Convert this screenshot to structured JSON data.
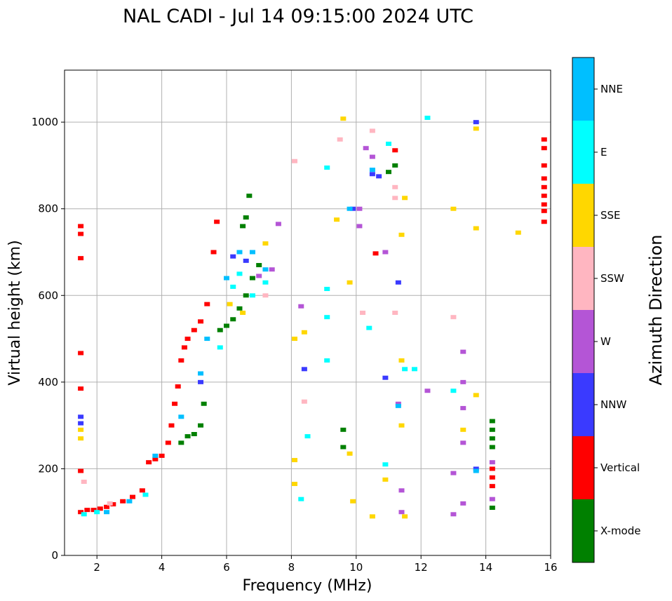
{
  "chart_data": {
    "type": "scatter",
    "title": "NAL CADI - Jul 14 09:15:00 2024 UTC",
    "xlabel": "Frequency (MHz)",
    "ylabel": "Virtual height (km)",
    "xlim": [
      1,
      16
    ],
    "ylim": [
      0,
      1120
    ],
    "xticks": [
      "2",
      "4",
      "6",
      "8",
      "10",
      "12",
      "14",
      "16"
    ],
    "yticks": [
      "0",
      "200",
      "400",
      "600",
      "800",
      "1000"
    ],
    "grid": true,
    "colorbar": {
      "label": "Azimuth Direction",
      "categories": [
        {
          "name": "X-mode",
          "color": "#008000"
        },
        {
          "name": "Vertical",
          "color": "#ff0000"
        },
        {
          "name": "NNW",
          "color": "#3a3aff"
        },
        {
          "name": "W",
          "color": "#b455d6"
        },
        {
          "name": "SSW",
          "color": "#ffb6c1"
        },
        {
          "name": "SSE",
          "color": "#ffd700"
        },
        {
          "name": "E",
          "color": "#00ffff"
        },
        {
          "name": "NNE",
          "color": "#00bfff"
        }
      ]
    },
    "series": [
      {
        "name": "Vertical",
        "points": [
          [
            1.5,
            100
          ],
          [
            1.7,
            105
          ],
          [
            1.9,
            105
          ],
          [
            2.1,
            108
          ],
          [
            2.3,
            112
          ],
          [
            2.5,
            118
          ],
          [
            2.8,
            125
          ],
          [
            3.1,
            135
          ],
          [
            3.4,
            150
          ],
          [
            3.6,
            215
          ],
          [
            3.8,
            222
          ],
          [
            4.0,
            230
          ],
          [
            4.2,
            260
          ],
          [
            4.3,
            300
          ],
          [
            4.4,
            350
          ],
          [
            4.5,
            390
          ],
          [
            4.6,
            450
          ],
          [
            4.7,
            480
          ],
          [
            4.8,
            500
          ],
          [
            5.0,
            520
          ],
          [
            5.2,
            540
          ],
          [
            5.4,
            580
          ],
          [
            5.6,
            700
          ],
          [
            5.7,
            770
          ],
          [
            1.5,
            760
          ],
          [
            1.5,
            742
          ],
          [
            1.5,
            686
          ],
          [
            1.5,
            467
          ],
          [
            1.5,
            385
          ],
          [
            1.5,
            195
          ],
          [
            15.8,
            960
          ],
          [
            15.8,
            940
          ],
          [
            15.8,
            900
          ],
          [
            15.8,
            870
          ],
          [
            15.8,
            850
          ],
          [
            15.8,
            830
          ],
          [
            15.8,
            810
          ],
          [
            15.8,
            795
          ],
          [
            15.8,
            770
          ],
          [
            14.2,
            200
          ],
          [
            14.2,
            180
          ],
          [
            14.2,
            160
          ],
          [
            10.6,
            697
          ],
          [
            11.2,
            935
          ]
        ]
      },
      {
        "name": "X-mode",
        "points": [
          [
            5.8,
            520
          ],
          [
            6.0,
            530
          ],
          [
            6.2,
            545
          ],
          [
            6.4,
            570
          ],
          [
            6.6,
            600
          ],
          [
            6.8,
            640
          ],
          [
            7.0,
            670
          ],
          [
            6.5,
            760
          ],
          [
            6.6,
            780
          ],
          [
            6.7,
            830
          ],
          [
            4.6,
            260
          ],
          [
            4.8,
            275
          ],
          [
            5.0,
            280
          ],
          [
            5.2,
            300
          ],
          [
            5.3,
            350
          ],
          [
            14.2,
            310
          ],
          [
            14.2,
            290
          ],
          [
            14.2,
            270
          ],
          [
            14.2,
            250
          ],
          [
            14.2,
            110
          ],
          [
            9.6,
            290
          ],
          [
            9.6,
            250
          ],
          [
            11.0,
            885
          ],
          [
            11.2,
            900
          ]
        ]
      },
      {
        "name": "NNW",
        "points": [
          [
            1.5,
            320
          ],
          [
            1.5,
            305
          ],
          [
            5.2,
            400
          ],
          [
            6.2,
            690
          ],
          [
            6.6,
            680
          ],
          [
            9.9,
            800
          ],
          [
            10.7,
            875
          ],
          [
            11.3,
            630
          ],
          [
            8.4,
            430
          ],
          [
            10.9,
            410
          ],
          [
            10.5,
            880
          ],
          [
            13.7,
            1000
          ],
          [
            13.7,
            200
          ]
        ]
      },
      {
        "name": "W",
        "points": [
          [
            7.0,
            645
          ],
          [
            7.4,
            660
          ],
          [
            7.6,
            765
          ],
          [
            10.1,
            800
          ],
          [
            10.1,
            760
          ],
          [
            10.3,
            940
          ],
          [
            10.5,
            920
          ],
          [
            10.9,
            700
          ],
          [
            12.2,
            380
          ],
          [
            13.3,
            470
          ],
          [
            13.3,
            400
          ],
          [
            13.3,
            340
          ],
          [
            13.3,
            260
          ],
          [
            13.3,
            120
          ],
          [
            13.0,
            190
          ],
          [
            13.0,
            95
          ],
          [
            11.3,
            350
          ],
          [
            11.4,
            150
          ],
          [
            11.4,
            100
          ],
          [
            8.3,
            575
          ],
          [
            14.2,
            130
          ],
          [
            14.2,
            215
          ]
        ]
      },
      {
        "name": "SSW",
        "points": [
          [
            1.6,
            170
          ],
          [
            2.4,
            120
          ],
          [
            7.2,
            600
          ],
          [
            10.2,
            560
          ],
          [
            10.5,
            980
          ],
          [
            11.2,
            560
          ],
          [
            11.2,
            825
          ],
          [
            11.2,
            850
          ],
          [
            13.0,
            550
          ],
          [
            8.4,
            355
          ],
          [
            9.5,
            960
          ],
          [
            8.1,
            910
          ]
        ]
      },
      {
        "name": "SSE",
        "points": [
          [
            1.5,
            290
          ],
          [
            1.5,
            270
          ],
          [
            6.1,
            580
          ],
          [
            6.5,
            560
          ],
          [
            7.2,
            720
          ],
          [
            8.1,
            500
          ],
          [
            8.1,
            220
          ],
          [
            8.1,
            165
          ],
          [
            8.4,
            515
          ],
          [
            9.4,
            775
          ],
          [
            9.6,
            1008
          ],
          [
            9.8,
            630
          ],
          [
            9.8,
            235
          ],
          [
            9.9,
            125
          ],
          [
            10.5,
            90
          ],
          [
            10.9,
            175
          ],
          [
            11.4,
            300
          ],
          [
            11.4,
            450
          ],
          [
            11.5,
            825
          ],
          [
            11.4,
            740
          ],
          [
            11.5,
            90
          ],
          [
            13.0,
            800
          ],
          [
            13.3,
            290
          ],
          [
            13.7,
            755
          ],
          [
            13.7,
            985
          ],
          [
            13.7,
            370
          ],
          [
            15.0,
            745
          ]
        ]
      },
      {
        "name": "E",
        "points": [
          [
            1.6,
            95
          ],
          [
            2.0,
            100
          ],
          [
            3.5,
            140
          ],
          [
            5.8,
            480
          ],
          [
            6.2,
            620
          ],
          [
            6.4,
            650
          ],
          [
            6.8,
            600
          ],
          [
            7.2,
            630
          ],
          [
            9.1,
            615
          ],
          [
            9.1,
            550
          ],
          [
            9.1,
            450
          ],
          [
            9.1,
            895
          ],
          [
            10.4,
            525
          ],
          [
            11.0,
            950
          ],
          [
            11.5,
            430
          ],
          [
            12.2,
            1010
          ],
          [
            13.0,
            380
          ],
          [
            8.3,
            130
          ],
          [
            8.5,
            275
          ],
          [
            10.9,
            210
          ],
          [
            11.8,
            430
          ]
        ]
      },
      {
        "name": "NNE",
        "points": [
          [
            2.3,
            100
          ],
          [
            3.0,
            125
          ],
          [
            3.8,
            230
          ],
          [
            4.6,
            320
          ],
          [
            5.2,
            420
          ],
          [
            5.4,
            500
          ],
          [
            6.0,
            640
          ],
          [
            6.4,
            700
          ],
          [
            6.8,
            700
          ],
          [
            7.2,
            660
          ],
          [
            9.8,
            800
          ],
          [
            10.5,
            890
          ],
          [
            11.3,
            345
          ],
          [
            13.7,
            195
          ]
        ]
      }
    ]
  }
}
